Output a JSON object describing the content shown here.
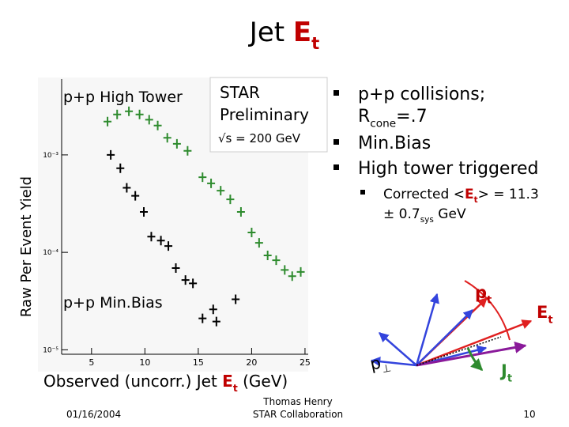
{
  "title": {
    "text": "Jet ",
    "symbol": "E",
    "sub": "t"
  },
  "chart_data": {
    "type": "scatter",
    "ylabel": "Raw Per Event Yield",
    "xlabel": {
      "text": "Observed (uncorr.) Jet ",
      "symbol": "E",
      "sub": "t",
      "post": " (GeV)"
    },
    "xlim": [
      2.2,
      25.3
    ],
    "ylim": [
      9e-06,
      0.006
    ],
    "log_y": true,
    "xticks": [
      5,
      10,
      15,
      20,
      25
    ],
    "yticks": [
      {
        "value": 0.001,
        "label": "10⁻³"
      },
      {
        "value": 0.0001,
        "label": "10⁻⁴"
      },
      {
        "value": 1e-05,
        "label": "10⁻⁵"
      }
    ],
    "annotation": [
      "STAR",
      "Preliminary",
      "√s = 200 GeV"
    ],
    "series": [
      {
        "name": "p+p High Tower",
        "color": "#2e8b2e",
        "x": [
          6.5,
          7.4,
          8.5,
          9.5,
          10.4,
          11.2,
          12.1,
          13.0,
          14.0,
          15.4,
          16.2,
          17.1,
          18.0,
          19.0,
          20.0,
          20.7,
          21.5,
          22.3,
          23.1,
          23.8,
          24.6
        ],
        "values": [
          0.0022,
          0.0026,
          0.0028,
          0.0026,
          0.0023,
          0.002,
          0.0015,
          0.0013,
          0.0011,
          0.00059,
          0.00051,
          0.00043,
          0.00035,
          0.00026,
          0.00016,
          0.000125,
          9.3e-05,
          8.3e-05,
          6.6e-05,
          5.7e-05,
          6.3e-05
        ]
      },
      {
        "name": "p+p Min.Bias",
        "color": "#000000",
        "x": [
          6.8,
          7.7,
          8.3,
          9.1,
          9.9,
          10.6,
          11.5,
          12.2,
          12.9,
          13.8,
          14.5,
          15.4,
          16.4,
          16.7,
          18.5
        ],
        "values": [
          0.001,
          0.00073,
          0.00046,
          0.00038,
          0.00026,
          0.000145,
          0.000132,
          0.000116,
          6.9e-05,
          5.2e-05,
          4.8e-05,
          2.1e-05,
          2.6e-05,
          1.95e-05,
          3.3e-05
        ]
      }
    ]
  },
  "bullets": {
    "items": [
      "p+p collisions;",
      {
        "text": "R",
        "sub": "cone",
        "post": "=.7"
      },
      "Min.Bias",
      "High tower triggered"
    ],
    "sub": {
      "pre": "Corrected <",
      "symbol": "E",
      "sub": "t",
      "post": "> = 11.3",
      "line2": "± 0.7",
      "sub2": "sys",
      "post2": " GeV"
    }
  },
  "diagram": {
    "pt": {
      "text": "p",
      "sub": "t"
    },
    "et": {
      "text": "E",
      "sub": "t"
    },
    "jt": {
      "text": "J",
      "sub": "t"
    },
    "pperp": {
      "text": "p",
      "sub": "⊥"
    }
  },
  "footer": {
    "date": "01/16/2004",
    "author": [
      "Thomas Henry",
      "STAR Collaboration"
    ],
    "page": "10"
  }
}
